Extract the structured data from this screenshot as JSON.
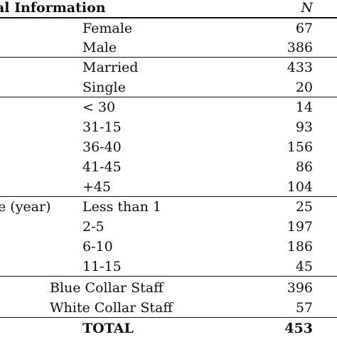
{
  "header": {
    "col_info": "al Information",
    "col_n": "N"
  },
  "rows": [
    {
      "label": "",
      "sub": "Female",
      "n": "67"
    },
    {
      "label": "",
      "sub": "Male",
      "n": "386"
    },
    {
      "label": "",
      "sub": "Married",
      "n": "433"
    },
    {
      "label": "",
      "sub": "Single",
      "n": "20"
    },
    {
      "label": "",
      "sub": "< 30",
      "n": "14"
    },
    {
      "label": "",
      "sub": "31-15",
      "n": "93"
    },
    {
      "label": "",
      "sub": "36-40",
      "n": "156"
    },
    {
      "label": "",
      "sub": "41-45",
      "n": "86"
    },
    {
      "label": "",
      "sub": "+45",
      "n": "104"
    },
    {
      "label": "e (year)",
      "sub": "Less than 1",
      "n": "25"
    },
    {
      "label": "",
      "sub": "2-5",
      "n": "197"
    },
    {
      "label": "",
      "sub": "6-10",
      "n": "186"
    },
    {
      "label": "",
      "sub": "11-15",
      "n": "45"
    },
    {
      "label": "",
      "sub": "Blue Collar Staff",
      "n": "396"
    },
    {
      "label": "",
      "sub": "White Collar Staff",
      "n": "57"
    }
  ],
  "total": {
    "label": "TOTAL",
    "n": "453"
  }
}
